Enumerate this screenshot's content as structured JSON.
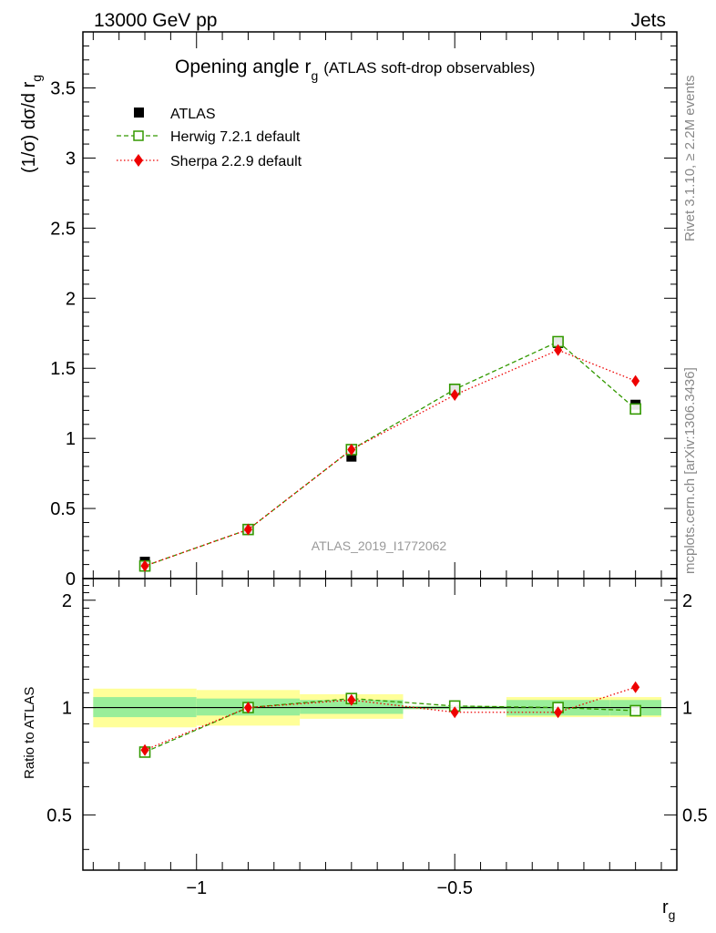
{
  "header": {
    "left": "13000 GeV pp",
    "right": "Jets"
  },
  "side_texts": {
    "rivet": "Rivet 3.1.10, ≥ 2.2M events",
    "mcplots": "mcplots.cern.ch [arXiv:1306.3436]"
  },
  "chart_data": [
    {
      "type": "line",
      "title_main": "Opening angle r",
      "title_sub": "g",
      "title_suffix": "(ATLAS soft-drop observables)",
      "watermark": "ATLAS_2019_I1772062",
      "ylabel_main": "(1/σ) dσ/d r",
      "ylabel_sub": "g",
      "xlim": [
        -1.22,
        -0.07
      ],
      "ylim": [
        0,
        3.9
      ],
      "yticks": [
        0,
        0.5,
        1,
        1.5,
        2,
        2.5,
        3,
        3.5
      ],
      "ytick_labels": [
        "0",
        "0.5",
        "1",
        "1.5",
        "2",
        "2.5",
        "3",
        "3.5"
      ],
      "x": [
        -1.1,
        -0.9,
        -0.7,
        -0.5,
        -0.3,
        -0.15
      ],
      "series": [
        {
          "name": "ATLAS",
          "color": "#000000",
          "marker": "square-filled",
          "values": [
            0.12,
            0.35,
            0.87,
            1.35,
            1.68,
            1.24
          ]
        },
        {
          "name": "Herwig 7.2.1 default",
          "color": "#339900",
          "marker": "square-open",
          "line": "dashed",
          "values": [
            0.09,
            0.35,
            0.92,
            1.35,
            1.69,
            1.21
          ]
        },
        {
          "name": "Sherpa 2.2.9 default",
          "color": "#ee0000",
          "marker": "diamond",
          "line": "dotted",
          "values": [
            0.09,
            0.35,
            0.92,
            1.31,
            1.63,
            1.41
          ]
        }
      ]
    },
    {
      "type": "line",
      "ylabel": "Ratio to ATLAS",
      "xlabel_main": "r",
      "xlabel_sub": "g",
      "xlim": [
        -1.22,
        -0.07
      ],
      "ylim_log": [
        0.35,
        2.3
      ],
      "yticks": [
        0.5,
        1,
        2
      ],
      "ytick_labels": [
        "0.5",
        "1",
        "2"
      ],
      "xticks": [
        -1,
        -0.5
      ],
      "xtick_labels": [
        "−1",
        "−0.5"
      ],
      "x": [
        -1.1,
        -0.9,
        -0.7,
        -0.5,
        -0.3,
        -0.15
      ],
      "bins": [
        [
          -1.2,
          -1.0
        ],
        [
          -1.0,
          -0.8
        ],
        [
          -0.8,
          -0.6
        ],
        [
          -0.6,
          -0.4
        ],
        [
          -0.4,
          -0.2
        ],
        [
          -0.2,
          -0.1
        ]
      ],
      "band_inner": [
        [
          0.94,
          1.07
        ],
        [
          0.95,
          1.06
        ],
        [
          0.96,
          1.05
        ],
        [
          0.99,
          1.01
        ],
        [
          0.95,
          1.05
        ],
        [
          0.95,
          1.05
        ]
      ],
      "band_outer": [
        [
          0.88,
          1.13
        ],
        [
          0.89,
          1.12
        ],
        [
          0.93,
          1.09
        ],
        [
          0.99,
          1.01
        ],
        [
          0.94,
          1.07
        ],
        [
          0.94,
          1.07
        ]
      ],
      "series": [
        {
          "name": "Herwig 7.2.1 default",
          "color": "#339900",
          "values": [
            0.75,
            1.0,
            1.06,
            1.01,
            1.0,
            0.98
          ]
        },
        {
          "name": "Sherpa 2.2.9 default",
          "color": "#ee0000",
          "values": [
            0.76,
            1.0,
            1.05,
            0.97,
            0.97,
            1.14
          ]
        }
      ]
    }
  ]
}
